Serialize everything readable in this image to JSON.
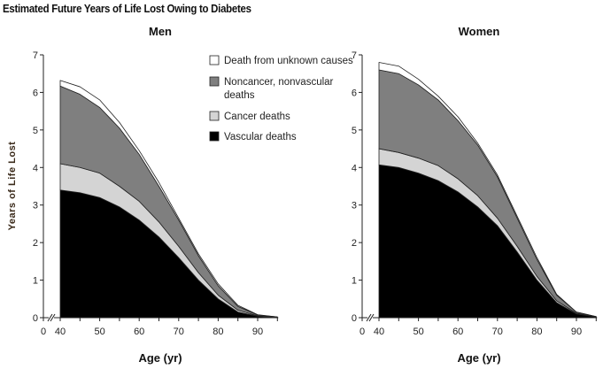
{
  "chart_data": {
    "title": "Estimated Future Years of Life Lost Owing to Diabetes",
    "type": "area",
    "stacked": true,
    "ylabel": "Years of Life Lost",
    "xlabel": "Age (yr)",
    "ylim": [
      0,
      7
    ],
    "yticks": [
      0,
      1,
      2,
      3,
      4,
      5,
      6,
      7
    ],
    "xticks": [
      0,
      40,
      50,
      60,
      70,
      80,
      90
    ],
    "x_axis_break": "between 0 and 40",
    "grid": false,
    "legend_placement": "top-right of Men panel",
    "legend": [
      {
        "name": "Death from unknown causes",
        "color": "#ffffff"
      },
      {
        "name": "Noncancer, nonvascular deaths",
        "color": "#7f7f7f",
        "lines": [
          "Noncancer, nonvascular",
          "deaths"
        ]
      },
      {
        "name": "Cancer deaths",
        "color": "#d4d4d4"
      },
      {
        "name": "Vascular deaths",
        "color": "#000000"
      }
    ],
    "x": [
      40,
      45,
      50,
      55,
      60,
      65,
      70,
      75,
      80,
      85,
      90,
      95
    ],
    "panels": [
      {
        "title": "Men",
        "series": [
          {
            "name": "Vascular deaths",
            "color": "#000000",
            "values": [
              3.4,
              3.33,
              3.2,
              2.95,
              2.6,
              2.15,
              1.6,
              1.0,
              0.5,
              0.15,
              0.04,
              0
            ]
          },
          {
            "name": "Cancer deaths",
            "color": "#d4d4d4",
            "values": [
              0.7,
              0.67,
              0.65,
              0.55,
              0.5,
              0.4,
              0.3,
              0.2,
              0.1,
              0.05,
              0.01,
              0
            ]
          },
          {
            "name": "Noncancer, nonvascular deaths",
            "color": "#7f7f7f",
            "values": [
              2.07,
              1.95,
              1.75,
              1.55,
              1.25,
              0.95,
              0.7,
              0.45,
              0.25,
              0.1,
              0.02,
              0.02
            ]
          },
          {
            "name": "Death from unknown causes",
            "color": "#ffffff",
            "values": [
              0.15,
              0.2,
              0.2,
              0.15,
              0.1,
              0.1,
              0.05,
              0.05,
              0.05,
              0.03,
              0.01,
              0
            ]
          }
        ]
      },
      {
        "title": "Women",
        "series": [
          {
            "name": "Vascular deaths",
            "color": "#000000",
            "values": [
              4.07,
              4.0,
              3.85,
              3.65,
              3.35,
              2.95,
              2.45,
              1.75,
              1.0,
              0.4,
              0.1,
              0.02
            ]
          },
          {
            "name": "Cancer deaths",
            "color": "#d4d4d4",
            "values": [
              0.43,
              0.4,
              0.4,
              0.4,
              0.35,
              0.3,
              0.2,
              0.15,
              0.1,
              0.05,
              0.02,
              0
            ]
          },
          {
            "name": "Noncancer, nonvascular deaths",
            "color": "#7f7f7f",
            "values": [
              2.1,
              2.1,
              1.95,
              1.75,
              1.55,
              1.35,
              1.1,
              0.75,
              0.45,
              0.15,
              0.03,
              0.01
            ]
          },
          {
            "name": "Death from unknown causes",
            "color": "#ffffff",
            "values": [
              0.2,
              0.2,
              0.15,
              0.1,
              0.1,
              0.05,
              0.05,
              0.05,
              0.05,
              0.02,
              0,
              0
            ]
          }
        ]
      }
    ]
  }
}
